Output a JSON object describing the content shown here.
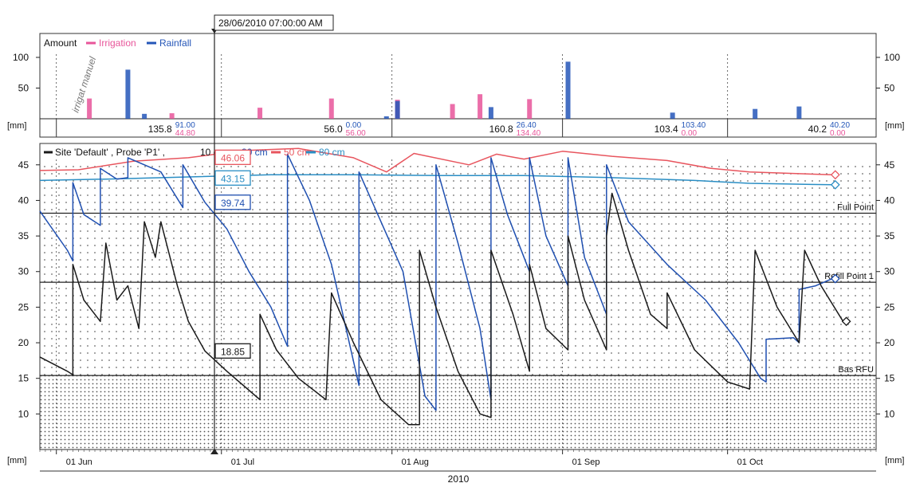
{
  "cursor_label": "28/06/2010 07:00:00 AM",
  "unit_label": "[mm]",
  "year_label": "2010",
  "top_panel": {
    "legend_prefix": "Amount",
    "legend": [
      {
        "name": "Irrigation",
        "color": "#e8559a"
      },
      {
        "name": "Rainfall",
        "color": "#2456b8"
      }
    ],
    "ylim": [
      0,
      100
    ],
    "yticks": [
      50,
      100
    ],
    "handwritten_note": "irrigat manuel",
    "summaries": [
      {
        "total": "135.8",
        "rain": "91.00",
        "irrig": "44.80"
      },
      {
        "total": "56.0",
        "rain": "0.00",
        "irrig": "56.00"
      },
      {
        "total": "160.8",
        "rain": "26.40",
        "irrig": "134.40"
      },
      {
        "total": "103.4",
        "rain": "103.40",
        "irrig": "0.00"
      },
      {
        "total": "40.2",
        "rain": "40.20",
        "irrig": "0.00"
      }
    ]
  },
  "bottom_panel": {
    "legend_prefix": "Site 'Default' , Probe 'P1' ,",
    "legend": [
      {
        "name": "10 cm",
        "color": "#1a1a1a"
      },
      {
        "name": "30 cm",
        "color": "#1f4fb0"
      },
      {
        "name": "50 cm",
        "color": "#e8555e"
      },
      {
        "name": "80 cm",
        "color": "#2a8ec4"
      }
    ],
    "ylim": [
      5,
      48
    ],
    "yticks": [
      10,
      15,
      20,
      25,
      30,
      35,
      40,
      45
    ],
    "thresholds": [
      {
        "label": "Full Point",
        "value": 38.2
      },
      {
        "label": "Refill Point 1",
        "value": 28.5
      },
      {
        "label": "Bas RFU",
        "value": 15.4
      }
    ],
    "cursor_values": [
      {
        "value": "46.06",
        "color": "#e8555e"
      },
      {
        "value": "43.15",
        "color": "#2a8ec4"
      },
      {
        "value": "39.74",
        "color": "#1f4fb0"
      },
      {
        "value": "18.85",
        "color": "#1a1a1a"
      }
    ],
    "x_ticks": [
      "01 Jun",
      "01 Jul",
      "01 Aug",
      "01 Sep",
      "01 Oct"
    ]
  },
  "chart_data": {
    "type": "line",
    "title": "",
    "xlabel": "2010",
    "ylabel": "[mm]",
    "x_range": [
      "2010-05-29",
      "2010-10-28"
    ],
    "bars": {
      "type": "bar",
      "ylabel": "[mm]",
      "ylim": [
        0,
        100
      ],
      "series": [
        {
          "name": "Irrigation",
          "points": [
            [
              "2010-06-07",
              33
            ],
            [
              "2010-06-22",
              9
            ],
            [
              "2010-07-08",
              18
            ],
            [
              "2010-07-21",
              33
            ],
            [
              "2010-08-02",
              31
            ],
            [
              "2010-08-12",
              24
            ],
            [
              "2010-08-17",
              40
            ],
            [
              "2010-08-26",
              32
            ]
          ]
        },
        {
          "name": "Rainfall",
          "points": [
            [
              "2010-06-14",
              80
            ],
            [
              "2010-06-17",
              8
            ],
            [
              "2010-07-31",
              4
            ],
            [
              "2010-08-02",
              29
            ],
            [
              "2010-08-19",
              19
            ],
            [
              "2010-09-02",
              93
            ],
            [
              "2010-09-21",
              10
            ],
            [
              "2010-10-06",
              16
            ],
            [
              "2010-10-14",
              20
            ]
          ]
        }
      ]
    },
    "lines": {
      "type": "line",
      "ylabel": "[mm]",
      "ylim": [
        5,
        48
      ],
      "series": [
        {
          "name": "50 cm",
          "points": [
            [
              "2010-05-29",
              44.2
            ],
            [
              "2010-06-05",
              44.3
            ],
            [
              "2010-06-15",
              45.5
            ],
            [
              "2010-06-25",
              46.0
            ],
            [
              "2010-07-05",
              47.0
            ],
            [
              "2010-07-15",
              47.3
            ],
            [
              "2010-07-25",
              46.0
            ],
            [
              "2010-07-31",
              44.0
            ],
            [
              "2010-08-05",
              46.6
            ],
            [
              "2010-08-15",
              45.0
            ],
            [
              "2010-08-20",
              46.5
            ],
            [
              "2010-08-25",
              45.8
            ],
            [
              "2010-09-01",
              46.9
            ],
            [
              "2010-09-10",
              46.2
            ],
            [
              "2010-09-20",
              45.6
            ],
            [
              "2010-09-28",
              44.5
            ],
            [
              "2010-10-05",
              44.0
            ],
            [
              "2010-10-20",
              43.6
            ]
          ]
        },
        {
          "name": "80 cm",
          "points": [
            [
              "2010-05-29",
              42.8
            ],
            [
              "2010-06-10",
              43.0
            ],
            [
              "2010-06-25",
              43.3
            ],
            [
              "2010-07-10",
              43.6
            ],
            [
              "2010-07-25",
              43.6
            ],
            [
              "2010-08-10",
              43.5
            ],
            [
              "2010-08-25",
              43.5
            ],
            [
              "2010-09-10",
              43.2
            ],
            [
              "2010-09-25",
              42.8
            ],
            [
              "2010-10-05",
              42.4
            ],
            [
              "2010-10-20",
              42.2
            ]
          ]
        },
        {
          "name": "30 cm",
          "points": [
            [
              "2010-05-29",
              38.5
            ],
            [
              "2010-06-03",
              33
            ],
            [
              "2010-06-04",
              31.5
            ],
            [
              "2010-06-04",
              42.5
            ],
            [
              "2010-06-06",
              38
            ],
            [
              "2010-06-09",
              36.5
            ],
            [
              "2010-06-09",
              44.5
            ],
            [
              "2010-06-12",
              43
            ],
            [
              "2010-06-14",
              43.2
            ],
            [
              "2010-06-14",
              46
            ],
            [
              "2010-06-17",
              45
            ],
            [
              "2010-06-20",
              44
            ],
            [
              "2010-06-24",
              39
            ],
            [
              "2010-06-24",
              45
            ],
            [
              "2010-06-28",
              39.74
            ],
            [
              "2010-07-02",
              36
            ],
            [
              "2010-07-06",
              30
            ],
            [
              "2010-07-10",
              25
            ],
            [
              "2010-07-13",
              19.5
            ],
            [
              "2010-07-13",
              46.5
            ],
            [
              "2010-07-17",
              40
            ],
            [
              "2010-07-21",
              31
            ],
            [
              "2010-07-26",
              14
            ],
            [
              "2010-07-26",
              44
            ],
            [
              "2010-07-30",
              37
            ],
            [
              "2010-08-03",
              30
            ],
            [
              "2010-08-07",
              12.5
            ],
            [
              "2010-08-09",
              10.5
            ],
            [
              "2010-08-09",
              45
            ],
            [
              "2010-08-13",
              34
            ],
            [
              "2010-08-17",
              22
            ],
            [
              "2010-08-19",
              12
            ],
            [
              "2010-08-19",
              46
            ],
            [
              "2010-08-22",
              38
            ],
            [
              "2010-08-26",
              30
            ],
            [
              "2010-08-26",
              46
            ],
            [
              "2010-08-29",
              35
            ],
            [
              "2010-09-02",
              28
            ],
            [
              "2010-09-02",
              46
            ],
            [
              "2010-09-05",
              32
            ],
            [
              "2010-09-09",
              24
            ],
            [
              "2010-09-09",
              45
            ],
            [
              "2010-09-13",
              37
            ],
            [
              "2010-09-20",
              31
            ],
            [
              "2010-09-27",
              26
            ],
            [
              "2010-10-03",
              20
            ],
            [
              "2010-10-07",
              15
            ],
            [
              "2010-10-08",
              14.5
            ],
            [
              "2010-10-08",
              20.5
            ],
            [
              "2010-10-13",
              20.7
            ],
            [
              "2010-10-14",
              20
            ],
            [
              "2010-10-14",
              27.5
            ],
            [
              "2010-10-17",
              28
            ],
            [
              "2010-10-20",
              29
            ]
          ]
        },
        {
          "name": "10 cm",
          "points": [
            [
              "2010-05-29",
              18
            ],
            [
              "2010-06-03",
              16
            ],
            [
              "2010-06-04",
              15.5
            ],
            [
              "2010-06-04",
              31
            ],
            [
              "2010-06-06",
              26
            ],
            [
              "2010-06-09",
              23
            ],
            [
              "2010-06-10",
              34
            ],
            [
              "2010-06-12",
              26
            ],
            [
              "2010-06-14",
              28
            ],
            [
              "2010-06-16",
              22
            ],
            [
              "2010-06-17",
              37
            ],
            [
              "2010-06-19",
              32
            ],
            [
              "2010-06-20",
              37
            ],
            [
              "2010-06-23",
              28
            ],
            [
              "2010-06-25",
              23
            ],
            [
              "2010-06-28",
              18.85
            ],
            [
              "2010-07-02",
              16
            ],
            [
              "2010-07-08",
              12
            ],
            [
              "2010-07-08",
              24
            ],
            [
              "2010-07-11",
              19
            ],
            [
              "2010-07-15",
              15
            ],
            [
              "2010-07-20",
              12
            ],
            [
              "2010-07-21",
              27
            ],
            [
              "2010-07-25",
              20
            ],
            [
              "2010-07-30",
              12
            ],
            [
              "2010-08-04",
              8.5
            ],
            [
              "2010-08-06",
              8.5
            ],
            [
              "2010-08-06",
              33
            ],
            [
              "2010-08-09",
              25
            ],
            [
              "2010-08-13",
              16
            ],
            [
              "2010-08-17",
              10
            ],
            [
              "2010-08-19",
              9.5
            ],
            [
              "2010-08-19",
              33
            ],
            [
              "2010-08-23",
              24
            ],
            [
              "2010-08-26",
              16
            ],
            [
              "2010-08-26",
              31
            ],
            [
              "2010-08-29",
              22
            ],
            [
              "2010-09-02",
              19
            ],
            [
              "2010-09-02",
              35
            ],
            [
              "2010-09-05",
              26
            ],
            [
              "2010-09-09",
              19
            ],
            [
              "2010-09-09",
              35
            ],
            [
              "2010-09-10",
              41
            ],
            [
              "2010-09-13",
              33
            ],
            [
              "2010-09-17",
              24
            ],
            [
              "2010-09-20",
              22
            ],
            [
              "2010-09-20",
              27
            ],
            [
              "2010-09-25",
              19
            ],
            [
              "2010-10-01",
              14.5
            ],
            [
              "2010-10-05",
              13.5
            ],
            [
              "2010-10-06",
              33
            ],
            [
              "2010-10-10",
              25
            ],
            [
              "2010-10-14",
              20
            ],
            [
              "2010-10-15",
              33
            ],
            [
              "2010-10-18",
              28
            ],
            [
              "2010-10-22",
              23
            ]
          ]
        }
      ]
    },
    "thresholds": {
      "Full Point": 38.2,
      "Refill Point 1": 28.5,
      "Bas RFU": 15.4
    },
    "cursor": {
      "date": "2010-06-28",
      "values": {
        "50 cm": 46.06,
        "80 cm": 43.15,
        "30 cm": 39.74,
        "10 cm": 18.85
      }
    },
    "grid": true,
    "legend_position": "top-left"
  }
}
